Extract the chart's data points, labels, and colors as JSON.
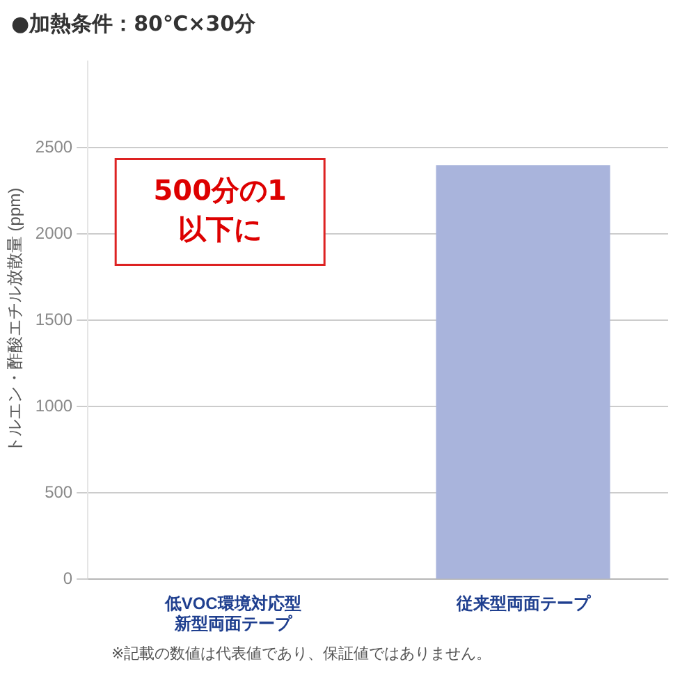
{
  "chart_data": {
    "type": "bar",
    "title": "●加熱条件：80℃×30分",
    "ylabel": "トルエン・酢酸エチル放散量 (ppm)",
    "categories": [
      "低VOC環境対応型新型両面テープ",
      "従来型両面テープ"
    ],
    "values": [
      0,
      2400
    ],
    "colors": [
      "#24479a",
      "#a9b4dc"
    ],
    "ylim": [
      0,
      3000
    ],
    "yticks": [
      0,
      500,
      1000,
      1500,
      2000,
      2500
    ],
    "grid": "y",
    "annotations": [
      "500分の1\n以下に",
      "※記載の数値は代表値であり、保証値ではありません。"
    ]
  }
}
